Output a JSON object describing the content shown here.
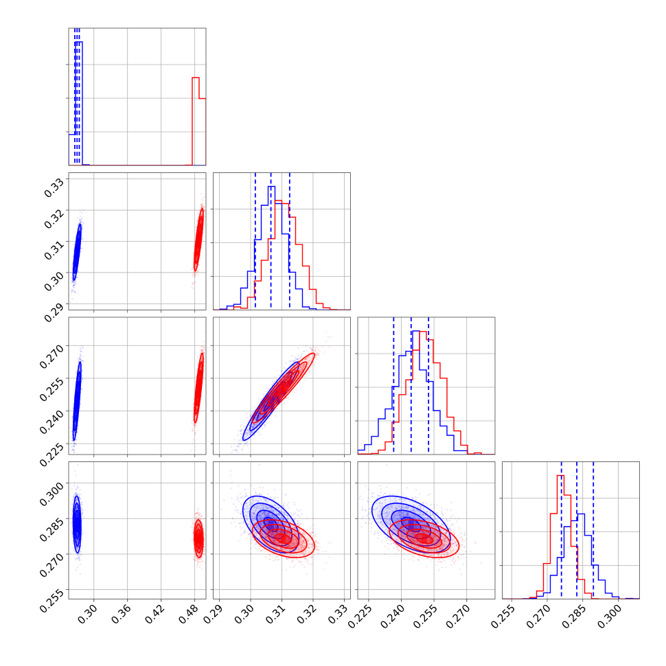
{
  "chart_data": {
    "type": "scatter",
    "series": [
      {
        "name": "",
        "color": "#0000ff"
      },
      {
        "name": "",
        "color": "#ff0000"
      }
    ],
    "params": [
      {
        "lim": [
          0.255,
          0.5
        ],
        "ticks": [
          "0.30",
          "0.36",
          "0.42",
          "0.48"
        ]
      },
      {
        "lim": [
          0.288,
          0.332
        ],
        "ticks": [
          "0.29",
          "0.30",
          "0.31",
          "0.32",
          "0.33"
        ]
      },
      {
        "lim": [
          0.22,
          0.283
        ],
        "ticks": [
          "0.225",
          "0.240",
          "0.255",
          "0.270"
        ]
      },
      {
        "lim": [
          0.251,
          0.309
        ],
        "ticks": [
          "0.255",
          "0.270",
          "0.285",
          "0.300"
        ]
      }
    ],
    "blue": {
      "mean": [
        0.27,
        0.3065,
        0.2445,
        0.2825
      ],
      "sd": [
        0.0035,
        0.0045,
        0.009,
        0.006
      ],
      "corr": [
        [
          1.0,
          0.8,
          0.8,
          -0.1
        ],
        [
          0.8,
          1.0,
          0.95,
          -0.5
        ],
        [
          0.8,
          0.95,
          1.0,
          -0.5
        ],
        [
          -0.1,
          -0.5,
          -0.5,
          1.0
        ]
      ],
      "quantiles": [
        [
          0.266,
          0.27,
          0.274
        ],
        [
          0.3015,
          0.3065,
          0.3125
        ],
        [
          0.2365,
          0.2445,
          0.2525
        ],
        [
          0.276,
          0.2825,
          0.2895
        ]
      ]
    },
    "red": {
      "mean": [
        0.487,
        0.3105,
        0.2505,
        0.2765
      ],
      "sd": [
        0.004,
        0.005,
        0.008,
        0.004
      ],
      "corr": [
        [
          1.0,
          0.8,
          0.8,
          -0.1
        ],
        [
          0.8,
          1.0,
          0.95,
          -0.4
        ],
        [
          0.8,
          0.95,
          1.0,
          -0.4
        ],
        [
          -0.1,
          -0.4,
          -0.4,
          1.0
        ]
      ],
      "quantiles": [
        [
          0.483,
          0.487,
          0.491
        ],
        [
          0.3055,
          0.3105,
          0.3155
        ],
        [
          0.2425,
          0.2505,
          0.2585
        ],
        [
          0.2725,
          0.2765,
          0.2805
        ]
      ]
    },
    "samples_per_series": 1400,
    "bins": 20,
    "grid": true,
    "quantile_lines": "dashed blue at 16%, 50%, 84% of blue series"
  }
}
